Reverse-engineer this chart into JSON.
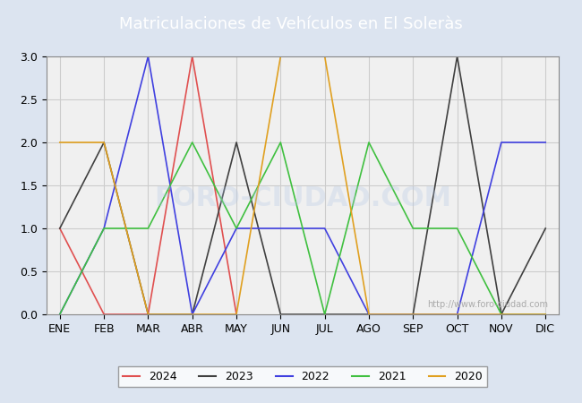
{
  "title": "Matriculaciones de Vehículos en El Soleràs",
  "title_bg_color": "#4472c4",
  "title_text_color": "#ffffff",
  "months": [
    "ENE",
    "FEB",
    "MAR",
    "ABR",
    "MAY",
    "JUN",
    "JUL",
    "AGO",
    "SEP",
    "OCT",
    "NOV",
    "DIC"
  ],
  "series": {
    "2024": {
      "color": "#e05050",
      "values": [
        1,
        0,
        0,
        3,
        0,
        null,
        null,
        null,
        null,
        null,
        null,
        null
      ]
    },
    "2023": {
      "color": "#404040",
      "values": [
        1,
        2,
        0,
        0,
        2,
        0,
        0,
        0,
        0,
        3,
        0,
        1
      ]
    },
    "2022": {
      "color": "#4040e0",
      "values": [
        0,
        1,
        3,
        0,
        1,
        1,
        1,
        0,
        0,
        0,
        2,
        2
      ]
    },
    "2021": {
      "color": "#40c040",
      "values": [
        0,
        1,
        1,
        2,
        1,
        2,
        0,
        2,
        1,
        1,
        0,
        0
      ]
    },
    "2020": {
      "color": "#e0a020",
      "values": [
        2,
        2,
        0,
        0,
        0,
        3,
        3,
        0,
        0,
        0,
        0,
        0
      ]
    }
  },
  "ylim": [
    0,
    3.0
  ],
  "yticks": [
    0.0,
    0.5,
    1.0,
    1.5,
    2.0,
    2.5,
    3.0
  ],
  "grid_color": "#cccccc",
  "plot_bg_color": "#f0f0f0",
  "fig_bg_color": "#dce4f0",
  "watermark_small": "http://www.foro-ciudad.com",
  "watermark_large": "FORO-CIUDAD.COM",
  "legend_order": [
    "2024",
    "2023",
    "2022",
    "2021",
    "2020"
  ]
}
